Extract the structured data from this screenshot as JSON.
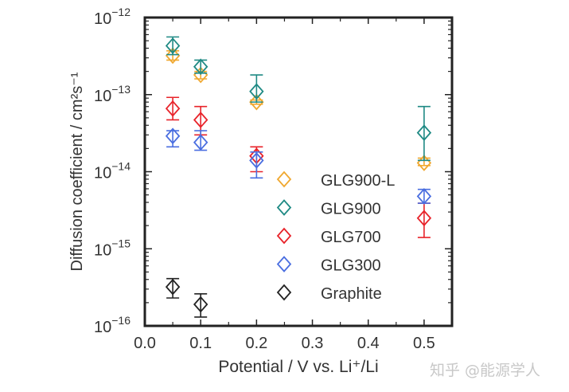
{
  "chart_data": {
    "type": "scatter",
    "xlabel": "Potential / V vs. Li⁺/Li",
    "ylabel": "Diffusion coefficient / cm²s⁻¹",
    "xlim": [
      0,
      0.55
    ],
    "ylim": [
      1e-16,
      1e-12
    ],
    "yscale": "log",
    "xticks": [
      "0.0",
      "0.1",
      "0.2",
      "0.3",
      "0.4",
      "0.5"
    ],
    "yticks": [
      {
        "base": "10",
        "exp": "−12"
      },
      {
        "base": "10",
        "exp": "−13"
      },
      {
        "base": "10",
        "exp": "−14"
      },
      {
        "base": "10",
        "exp": "−15"
      },
      {
        "base": "10",
        "exp": "−16"
      }
    ],
    "legend_position": "center-right",
    "series": [
      {
        "name": "GLG900-L",
        "color": "#f0a830",
        "x": [
          0.05,
          0.1,
          0.2,
          0.5
        ],
        "y": [
          3.2e-13,
          1.8e-13,
          8e-14,
          1.3e-14
        ],
        "err_low": [
          2.8e-13,
          1.6e-13,
          7.5e-14,
          1.2e-14
        ],
        "err_high": [
          3.7e-13,
          2e-13,
          8.5e-14,
          1.5e-14
        ]
      },
      {
        "name": "GLG900",
        "color": "#1f8a84",
        "x": [
          0.05,
          0.1,
          0.2,
          0.5
        ],
        "y": [
          4.3e-13,
          2.3e-13,
          1.1e-13,
          3.2e-14
        ],
        "err_low": [
          3.3e-13,
          1.9e-13,
          8e-14,
          1.4e-14
        ],
        "err_high": [
          5.6e-13,
          2.8e-13,
          1.8e-13,
          7e-14
        ]
      },
      {
        "name": "GLG700",
        "color": "#e8232a",
        "x": [
          0.05,
          0.1,
          0.2,
          0.5
        ],
        "y": [
          6.6e-14,
          4.7e-14,
          1.6e-14,
          2.5e-15
        ],
        "err_low": [
          4.7e-14,
          3e-14,
          1e-14,
          1.4e-15
        ],
        "err_high": [
          9.2e-14,
          7e-14,
          2.1e-14,
          3.9e-15
        ]
      },
      {
        "name": "GLG300",
        "color": "#4a6ee0",
        "x": [
          0.05,
          0.1,
          0.2,
          0.5
        ],
        "y": [
          2.9e-14,
          2.4e-14,
          1.4e-14,
          4.8e-15
        ],
        "err_low": [
          2.1e-14,
          1.9e-14,
          8.3e-15,
          3.9e-15
        ],
        "err_high": [
          3.4e-14,
          3.4e-14,
          1.8e-14,
          5.9e-15
        ]
      },
      {
        "name": "Graphite",
        "color": "#222222",
        "x": [
          0.05,
          0.1
        ],
        "y": [
          3.2e-16,
          1.9e-16
        ],
        "err_low": [
          2.3e-16,
          1.3e-16
        ],
        "err_high": [
          4.1e-16,
          2.6e-16
        ]
      }
    ]
  },
  "watermark": "知乎 @能源学人"
}
